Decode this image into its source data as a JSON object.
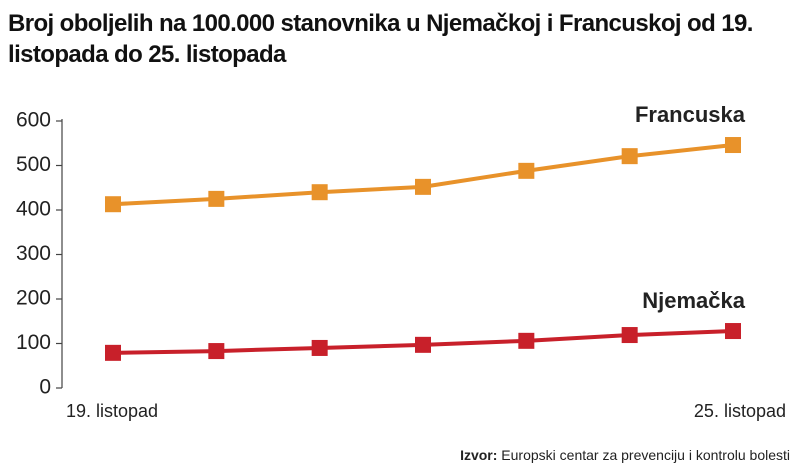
{
  "chart_data": {
    "type": "line",
    "title": "Broj oboljelih na 100.000 stanovnika u Njemačkoj i Francuskoj od 19. listopada do 25. listopada",
    "categories": [
      "19. listopad",
      null,
      null,
      null,
      null,
      null,
      "25. listopad"
    ],
    "series": [
      {
        "name": "Francuska",
        "color": "#e8922a",
        "values": [
          413,
          425,
          440,
          452,
          488,
          521,
          546
        ]
      },
      {
        "name": "Njemačka",
        "color": "#c8202a",
        "values": [
          79,
          83,
          90,
          97,
          106,
          119,
          128
        ]
      }
    ],
    "ylim": [
      0,
      600
    ],
    "yticks": [
      0,
      100,
      200,
      300,
      400,
      500,
      600
    ],
    "grid": false,
    "source_label": "Izvor:",
    "source": "Europski centar za prevenciju i kontrolu bolesti"
  }
}
